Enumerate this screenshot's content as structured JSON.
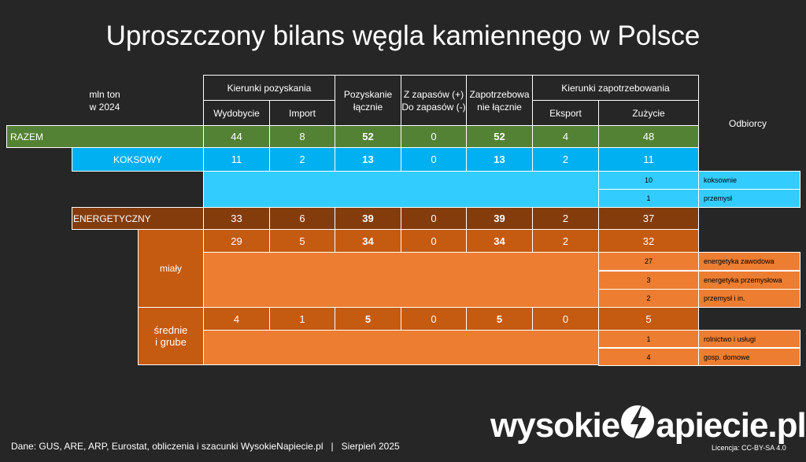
{
  "title": "Uproszczony bilans węgla kamiennego w Polsce",
  "unit_label": [
    "mln ton",
    "w 2024"
  ],
  "odbiorcy_label": "Odbiorcy",
  "headers": {
    "kierunki_pozyskania": "Kierunki pozyskania",
    "wydobycie": "Wydobycie",
    "import": "Import",
    "pozyskanie": [
      "Pozyskanie",
      "łącznie"
    ],
    "zapasy": [
      "Z zapasów (+)",
      "Do zapasów (-)"
    ],
    "zapotrzebowanie": [
      "Zapotrzebowa",
      "nie łącznie"
    ],
    "kierunki_zapotrzebowania": "Kierunki zapotrzebowania",
    "eksport": "Eksport",
    "zuzycie": "Zużycie"
  },
  "colors": {
    "razem": "#548235",
    "koksowy": "#00b0f0",
    "koksowy_light": "#33ccff",
    "energetyczny": "#843c0c",
    "sub": "#c55a11",
    "sub_light": "#ed7d31"
  },
  "chart_data": {
    "type": "table",
    "title": "Uproszczony bilans węgla kamiennego w Polsce",
    "columns": [
      "Wydobycie",
      "Import",
      "Pozyskanie łącznie",
      "Z zapasów (+) Do zapasów (-)",
      "Zapotrzebowanie łącznie",
      "Eksport",
      "Zużycie"
    ],
    "rows": [
      {
        "label": "RAZEM",
        "values": [
          "44",
          "8",
          "52",
          "0",
          "52",
          "4",
          "48"
        ]
      },
      {
        "label": "KOKSOWY",
        "values": [
          "11",
          "2",
          "13",
          "0",
          "13",
          "2",
          "11"
        ],
        "consumers": [
          {
            "value": "10",
            "name": "koksownie"
          },
          {
            "value": "1",
            "name": "przemysł"
          }
        ]
      },
      {
        "label": "ENERGETYCZNY",
        "values": [
          "33",
          "6",
          "39",
          "0",
          "39",
          "2",
          "37"
        ]
      },
      {
        "label": "miały",
        "values": [
          "29",
          "5",
          "34",
          "0",
          "34",
          "2",
          "32"
        ],
        "consumers": [
          {
            "value": "27",
            "name": "energetyka zawodowa"
          },
          {
            "value": "3",
            "name": "energetyka przemysłowa"
          },
          {
            "value": "2",
            "name": "przemysł i in."
          }
        ]
      },
      {
        "label": [
          "średnie",
          "i grube"
        ],
        "values": [
          "4",
          "1",
          "5",
          "0",
          "5",
          "0",
          "5"
        ],
        "consumers": [
          {
            "value": "1",
            "name": "rolnictwo i usługi"
          },
          {
            "value": "4",
            "name": "gosp. domowe"
          }
        ]
      }
    ]
  },
  "footer": "Dane: GUS, ARE, ARP, Eurostat, obliczenia i szacunki WysokieNapiecie.pl   |   Sierpień 2025",
  "license": "Licencja: CC-BY-SA 4.0",
  "logo": {
    "part1": "wysokie",
    "part2": "N",
    "part3": "apiecie.pl"
  }
}
